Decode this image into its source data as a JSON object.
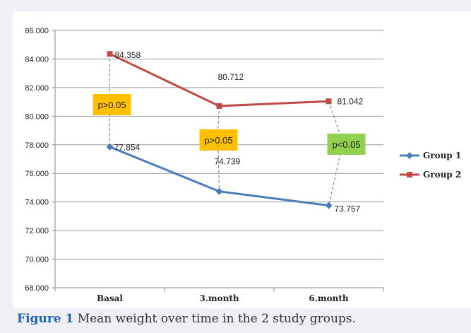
{
  "caption": {
    "label": "Figure 1",
    "text": "Mean weight over time in the 2 study groups."
  },
  "chart_data": {
    "type": "line",
    "title": "",
    "xlabel": "",
    "ylabel": "",
    "categories": [
      "Basal",
      "3.month",
      "6.month"
    ],
    "ylim": [
      68.0,
      86.0
    ],
    "yticks": [
      68.0,
      70.0,
      72.0,
      74.0,
      76.0,
      78.0,
      80.0,
      82.0,
      84.0,
      86.0
    ],
    "ytick_labels": [
      "68.000",
      "70.000",
      "72.000",
      "74.000",
      "76.000",
      "78.000",
      "80.000",
      "82.000",
      "84.000",
      "86.000"
    ],
    "grid": true,
    "legend_position": "right",
    "series": [
      {
        "name": "Group 1",
        "color": "#4a7ebb",
        "marker": "diamond",
        "values": [
          77.854,
          74.739,
          73.757
        ],
        "labels": [
          "77.854",
          "74.739",
          "73.757"
        ]
      },
      {
        "name": "Group 2",
        "color": "#be4b48",
        "marker": "square",
        "values": [
          84.358,
          80.712,
          81.042
        ],
        "labels": [
          "84.358",
          "80.712",
          "81.042"
        ]
      }
    ],
    "annotations": [
      {
        "text": "p>0.05",
        "category_index": 0,
        "color": "#ffc000"
      },
      {
        "text": "p>0.05",
        "category_index": 1,
        "color": "#ffc000"
      },
      {
        "text": "p<0.05",
        "category_index": 2,
        "color": "#92d050"
      }
    ]
  }
}
